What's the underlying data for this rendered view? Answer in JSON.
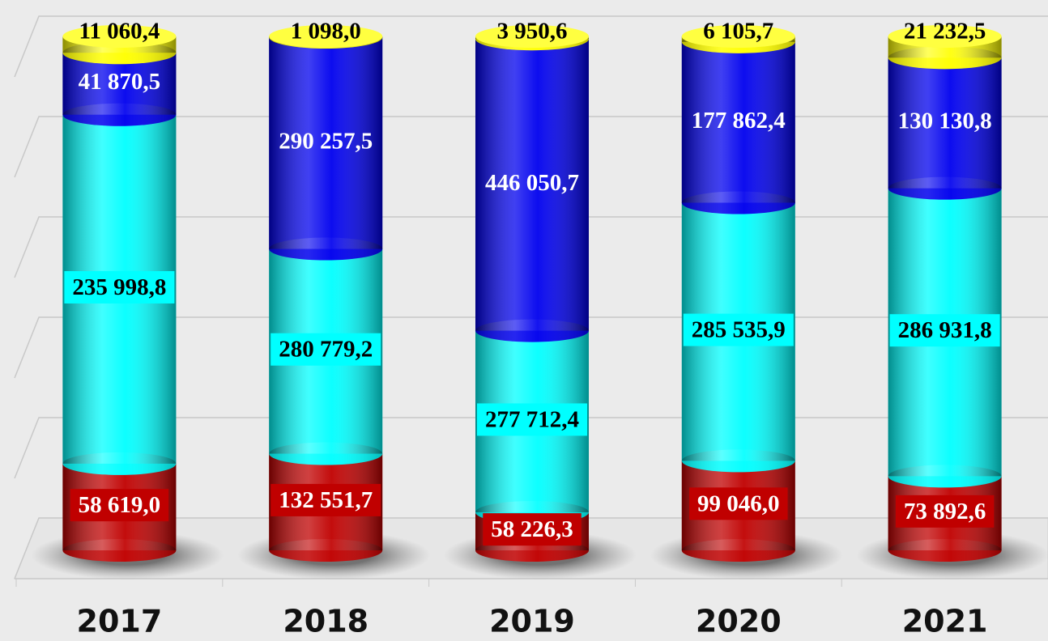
{
  "chart_data": {
    "type": "bar",
    "stacked": "percent",
    "categories": [
      "2017",
      "2018",
      "2019",
      "2020",
      "2021"
    ],
    "series": [
      {
        "color": "#c00000",
        "values": [
          58619.0,
          132551.7,
          58226.3,
          99046.0,
          73892.6
        ],
        "value_labels": [
          "58 619,0",
          "132 551,7",
          "58 226,3",
          "99 046,0",
          "73 892,6"
        ]
      },
      {
        "color": "#00ffff",
        "values": [
          235998.8,
          280779.2,
          277712.4,
          285535.9,
          286931.8
        ],
        "value_labels": [
          "235 998,8",
          "280 779,2",
          "277 712,4",
          "285 535,9",
          "286 931,8"
        ]
      },
      {
        "color": "#0000ee",
        "values": [
          41870.5,
          290257.5,
          446050.7,
          177862.4,
          130130.8
        ],
        "value_labels": [
          "41 870,5",
          "290 257,5",
          "446 050,7",
          "177 862,4",
          "130 130,8"
        ]
      },
      {
        "color": "#ffff00",
        "values": [
          11060.4,
          1098.0,
          3950.6,
          6105.7,
          21232.5
        ],
        "value_labels": [
          "11 060,4",
          "1 098,0",
          "3 950,6",
          "6 105,7",
          "21 232,5"
        ]
      }
    ],
    "ylim": [
      0,
      100
    ],
    "yticks": [
      0,
      20,
      40,
      60,
      80,
      100
    ],
    "grid": true
  }
}
